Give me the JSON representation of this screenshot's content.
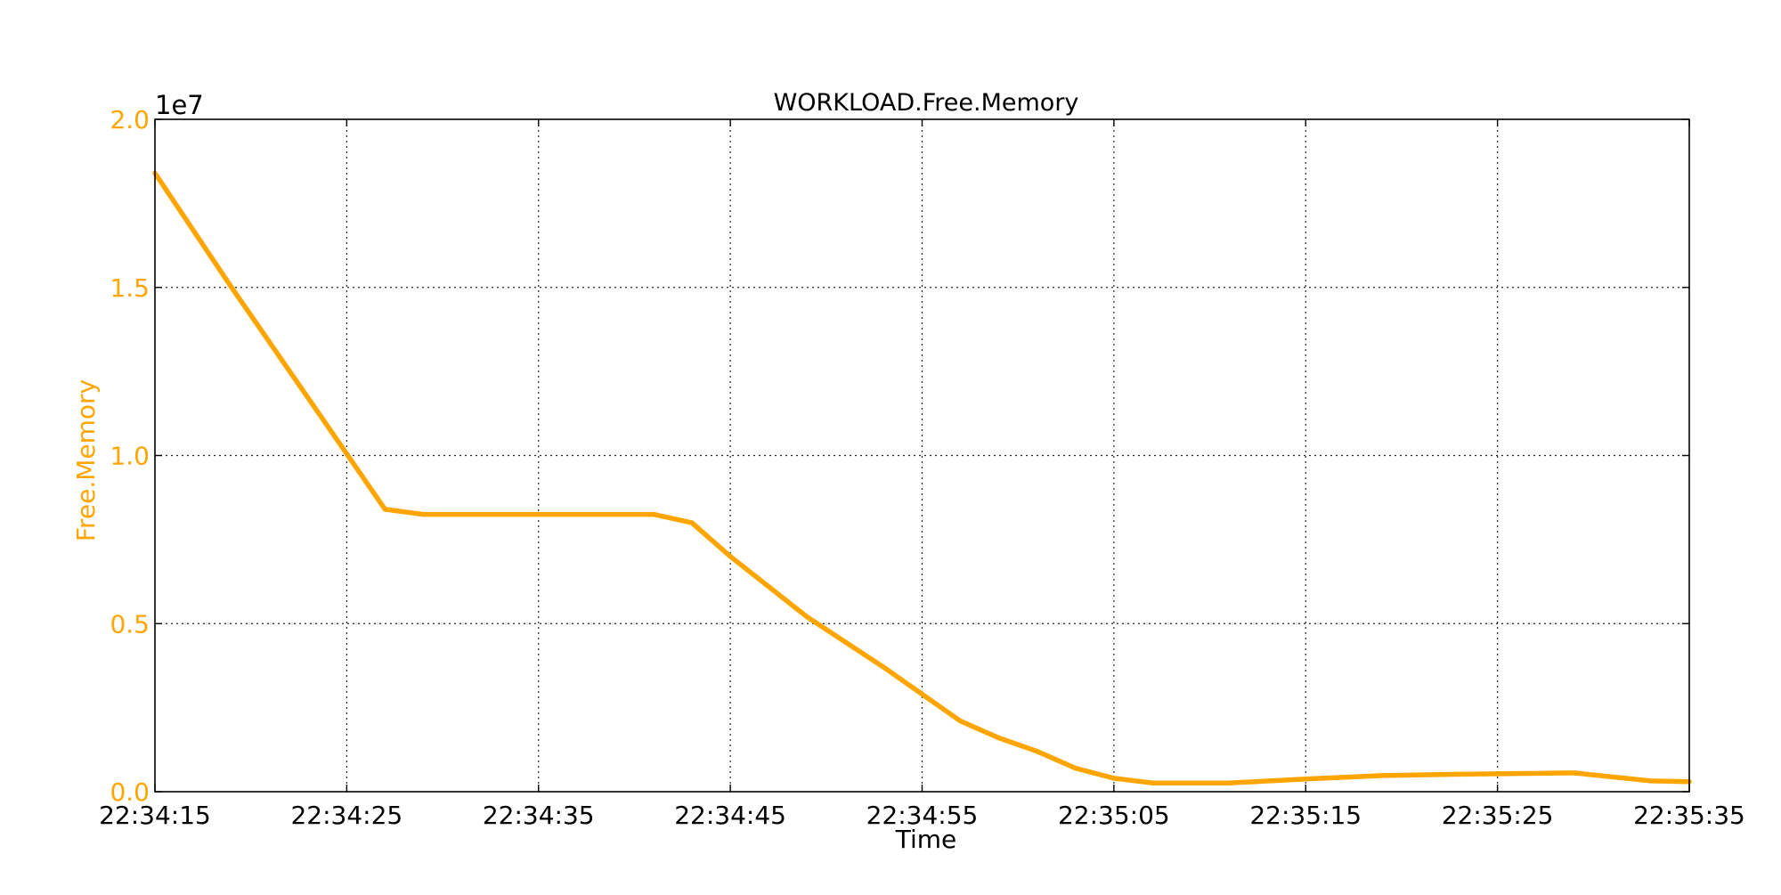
{
  "chart_data": {
    "type": "line",
    "title": "WORKLOAD.Free.Memory",
    "xlabel": "Time",
    "ylabel": "Free.Memory",
    "y_offset_label": "1e7",
    "y_scale": 10000000,
    "xlim": [
      "22:34:15",
      "22:35:35"
    ],
    "ylim": [
      0,
      20000000
    ],
    "x_ticks": [
      "22:34:15",
      "22:34:25",
      "22:34:35",
      "22:34:45",
      "22:34:55",
      "22:35:05",
      "22:35:15",
      "22:35:25",
      "22:35:35"
    ],
    "y_ticks": [
      0.0,
      0.5,
      1.0,
      1.5,
      2.0
    ],
    "y_tick_labels": [
      "0.0",
      "0.5",
      "1.0",
      "1.5",
      "2.0"
    ],
    "grid": true,
    "colors": {
      "series": "#FFA500",
      "y_axis_text": "#FFA500",
      "axis": "#000000"
    },
    "series": [
      {
        "x": [
          "22:34:15",
          "22:34:19",
          "22:34:23",
          "22:34:27",
          "22:34:29",
          "22:34:31",
          "22:34:35",
          "22:34:41",
          "22:34:43",
          "22:34:45",
          "22:34:49",
          "22:34:53",
          "22:34:55",
          "22:34:57",
          "22:34:59",
          "22:35:01",
          "22:35:03",
          "22:35:05",
          "22:35:07",
          "22:35:11",
          "22:35:15",
          "22:35:19",
          "22:35:23",
          "22:35:29",
          "22:35:33",
          "22:35:35"
        ],
        "y": [
          18400000,
          15000000,
          11700000,
          8400000,
          8250000,
          8250000,
          8250000,
          8250000,
          8000000,
          7000000,
          5200000,
          3700000,
          2900000,
          2100000,
          1600000,
          1200000,
          700000,
          400000,
          260000,
          260000,
          380000,
          480000,
          520000,
          560000,
          320000,
          300000
        ]
      }
    ]
  }
}
